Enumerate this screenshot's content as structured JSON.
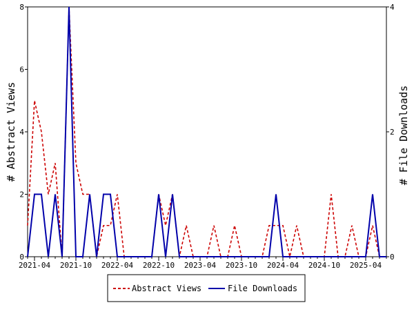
{
  "chart_data": {
    "type": "line",
    "ylabel_left": "# Abstract Views",
    "ylabel_right": "# File Downloads",
    "ylim_left": [
      0,
      8
    ],
    "ylim_right": [
      0,
      4
    ],
    "yticks_left": [
      "0",
      "2",
      "4",
      "6",
      "8"
    ],
    "yticks_right": [
      "0",
      "2",
      "4"
    ],
    "x_tick_labels": [
      "2021-04",
      "2021-10",
      "2022-04",
      "2022-10",
      "2023-04",
      "2023-10",
      "2024-04",
      "2024-10",
      "2025-04"
    ],
    "months": [
      "2021-03",
      "2021-04",
      "2021-05",
      "2021-06",
      "2021-07",
      "2021-08",
      "2021-09",
      "2021-10",
      "2021-11",
      "2021-12",
      "2022-01",
      "2022-02",
      "2022-03",
      "2022-04",
      "2022-05",
      "2022-06",
      "2022-07",
      "2022-08",
      "2022-09",
      "2022-10",
      "2022-11",
      "2022-12",
      "2023-01",
      "2023-02",
      "2023-03",
      "2023-04",
      "2023-05",
      "2023-06",
      "2023-07",
      "2023-08",
      "2023-09",
      "2023-10",
      "2023-11",
      "2023-12",
      "2024-01",
      "2024-02",
      "2024-03",
      "2024-04",
      "2024-05",
      "2024-06",
      "2024-07",
      "2024-08",
      "2024-09",
      "2024-10",
      "2024-11",
      "2024-12",
      "2025-01",
      "2025-02",
      "2025-03",
      "2025-04",
      "2025-05",
      "2025-06",
      "2025-07"
    ],
    "legend_position": "bottom",
    "series": [
      {
        "name": "Abstract Views",
        "axis": "left",
        "color": "#cc0000",
        "style": "dashed",
        "values": [
          1,
          5,
          4,
          2,
          3,
          0,
          8,
          3,
          2,
          2,
          0,
          1,
          1,
          2,
          0,
          0,
          0,
          0,
          0,
          2,
          1,
          2,
          0,
          1,
          0,
          0,
          0,
          1,
          0,
          0,
          1,
          0,
          0,
          0,
          0,
          1,
          1,
          1,
          0,
          1,
          0,
          0,
          0,
          0,
          2,
          0,
          0,
          1,
          0,
          0,
          1,
          0,
          0
        ]
      },
      {
        "name": "File Downloads",
        "axis": "right",
        "color": "#0000aa",
        "style": "solid",
        "values": [
          0,
          1,
          1,
          0,
          1,
          0,
          4,
          0,
          0,
          1,
          0,
          1,
          1,
          0,
          0,
          0,
          0,
          0,
          0,
          1,
          0,
          1,
          0,
          0,
          0,
          0,
          0,
          0,
          0,
          0,
          0,
          0,
          0,
          0,
          0,
          0,
          1,
          0,
          0,
          0,
          0,
          0,
          0,
          0,
          0,
          0,
          0,
          0,
          0,
          0,
          1,
          0,
          0
        ]
      }
    ]
  }
}
